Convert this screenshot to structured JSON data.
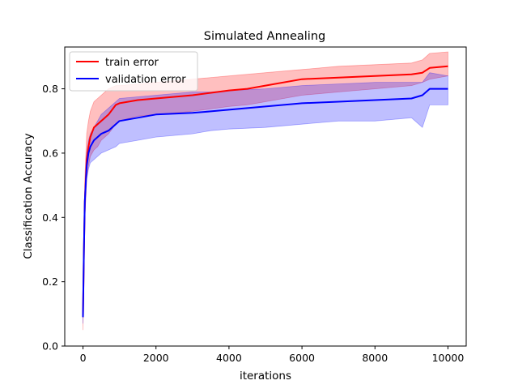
{
  "chart_data": {
    "type": "line",
    "title": "Simulated Annealing",
    "xlabel": "iterations",
    "ylabel": "Classification Accuracy",
    "xlim": [
      -500,
      10500
    ],
    "ylim": [
      0.0,
      0.93
    ],
    "xticks": [
      0,
      2000,
      4000,
      6000,
      8000,
      10000
    ],
    "yticks": [
      0.0,
      0.2,
      0.4,
      0.6,
      0.8
    ],
    "grid": false,
    "legend_position": "top-left",
    "series": [
      {
        "name": "train error",
        "color": "#ff0000",
        "band_color": "#ff0000",
        "x": [
          0,
          25,
          50,
          100,
          150,
          200,
          300,
          400,
          500,
          700,
          900,
          1000,
          1500,
          2000,
          3000,
          4000,
          4500,
          5000,
          6000,
          7000,
          8000,
          9000,
          9300,
          9500,
          10000
        ],
        "y": [
          0.09,
          0.3,
          0.45,
          0.58,
          0.62,
          0.65,
          0.68,
          0.69,
          0.7,
          0.72,
          0.75,
          0.755,
          0.765,
          0.77,
          0.78,
          0.795,
          0.8,
          0.81,
          0.83,
          0.835,
          0.84,
          0.845,
          0.85,
          0.865,
          0.87
        ],
        "upper": [
          0.1,
          0.33,
          0.52,
          0.66,
          0.7,
          0.73,
          0.76,
          0.77,
          0.78,
          0.8,
          0.81,
          0.81,
          0.815,
          0.82,
          0.83,
          0.84,
          0.845,
          0.85,
          0.86,
          0.87,
          0.875,
          0.88,
          0.89,
          0.91,
          0.915
        ],
        "lower": [
          0.05,
          0.26,
          0.4,
          0.52,
          0.56,
          0.59,
          0.61,
          0.62,
          0.64,
          0.66,
          0.69,
          0.7,
          0.715,
          0.72,
          0.73,
          0.745,
          0.75,
          0.76,
          0.78,
          0.79,
          0.8,
          0.81,
          0.82,
          0.83,
          0.84
        ]
      },
      {
        "name": "validation error",
        "color": "#0000ff",
        "band_color": "#0000ff",
        "x": [
          0,
          25,
          50,
          100,
          150,
          200,
          300,
          400,
          500,
          700,
          900,
          1000,
          1500,
          2000,
          3000,
          3500,
          4000,
          5000,
          6000,
          7000,
          8000,
          9000,
          9300,
          9500,
          10000
        ],
        "y": [
          0.09,
          0.3,
          0.45,
          0.56,
          0.6,
          0.62,
          0.64,
          0.65,
          0.66,
          0.67,
          0.69,
          0.7,
          0.71,
          0.72,
          0.725,
          0.73,
          0.735,
          0.745,
          0.755,
          0.76,
          0.765,
          0.77,
          0.78,
          0.8,
          0.8
        ],
        "upper": [
          0.1,
          0.32,
          0.48,
          0.6,
          0.64,
          0.66,
          0.68,
          0.7,
          0.72,
          0.74,
          0.76,
          0.77,
          0.775,
          0.78,
          0.79,
          0.79,
          0.795,
          0.8,
          0.81,
          0.815,
          0.82,
          0.82,
          0.82,
          0.85,
          0.84
        ],
        "lower": [
          0.07,
          0.26,
          0.4,
          0.52,
          0.55,
          0.57,
          0.58,
          0.59,
          0.6,
          0.61,
          0.62,
          0.63,
          0.64,
          0.65,
          0.66,
          0.67,
          0.675,
          0.68,
          0.69,
          0.7,
          0.7,
          0.71,
          0.68,
          0.75,
          0.75
        ]
      }
    ]
  }
}
